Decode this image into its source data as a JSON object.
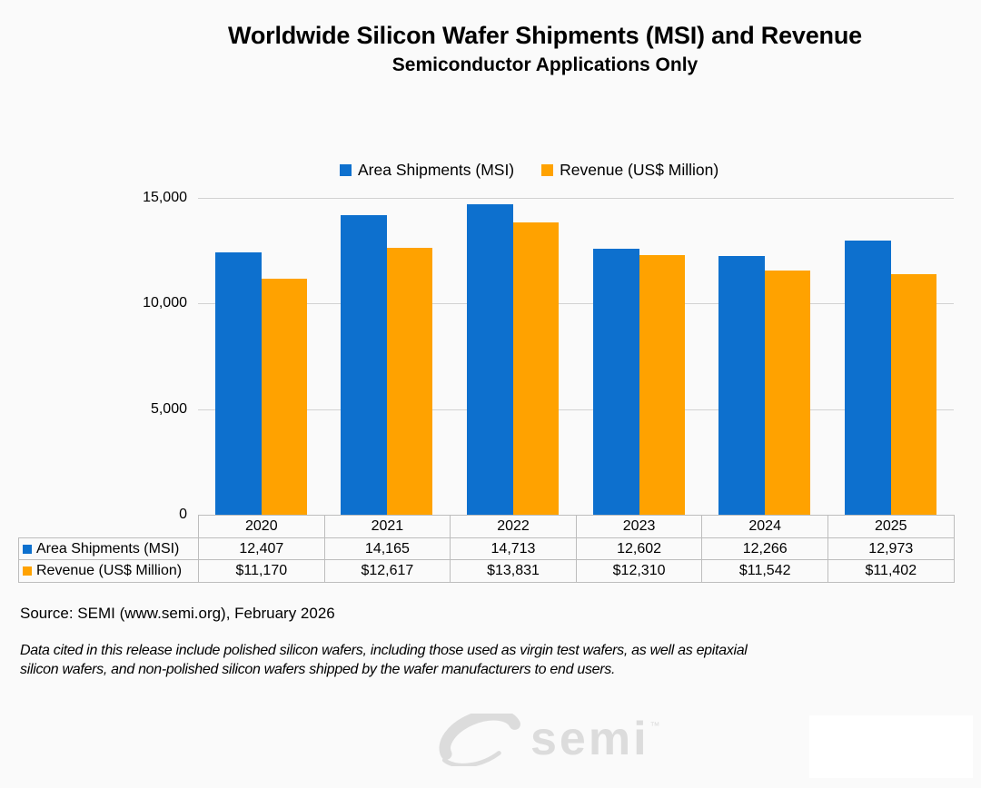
{
  "title": {
    "line1": "Worldwide Silicon Wafer Shipments (MSI) and Revenue",
    "line2": "Semiconductor Applications Only"
  },
  "legend": [
    {
      "label": "Area Shipments (MSI)",
      "color": "#0d70cе"
    },
    {
      "label": "Revenue (US$ Million)",
      "color": "#ffa200"
    }
  ],
  "chart_data": {
    "type": "bar",
    "title": "Worldwide Silicon Wafer Shipments (MSI) and Revenue",
    "subtitle": "Semiconductor Applications Only",
    "categories": [
      "2020",
      "2021",
      "2022",
      "2023",
      "2024",
      "2025"
    ],
    "series": [
      {
        "name": "Area Shipments (MSI)",
        "color": "#0d70ce",
        "values": [
          12407,
          14165,
          14713,
          12602,
          12266,
          12973
        ],
        "display_values": [
          "12,407",
          "14,165",
          "14,713",
          "12,602",
          "12,266",
          "12,973"
        ]
      },
      {
        "name": "Revenue (US$ Million)",
        "color": "#ffa200",
        "values": [
          11170,
          12617,
          13831,
          12310,
          11542,
          11402
        ],
        "display_values": [
          "$11,170",
          "$12,617",
          "$13,831",
          "$12,310",
          "$11,542",
          "$11,402"
        ]
      }
    ],
    "ylim": [
      0,
      15000
    ],
    "yticks": [
      0,
      5000,
      10000,
      15000
    ],
    "ytick_labels": [
      "0",
      "5,000",
      "10,000",
      "15,000"
    ],
    "grid": "horizontal",
    "legend_position": "top",
    "data_table_shown": true
  },
  "source_text": "Source: SEMI (www.semi.org), February 2026",
  "footnote": {
    "line1": "Data cited in this release include polished silicon wafers, including those used as virgin test wafers, as well as epitaxial",
    "line2": "silicon wafers, and non-polished silicon wafers shipped by the wafer manufacturers to end users."
  },
  "logo": {
    "text": "semi",
    "trademark": "™"
  },
  "colors": {
    "shipments_blue": "#0d70ce",
    "revenue_orange": "#ffa200",
    "gridline": "#d2d2d2",
    "table_border": "#bdbdbd",
    "logo_gray": "#dcdcdc",
    "background": "#fafafa"
  }
}
